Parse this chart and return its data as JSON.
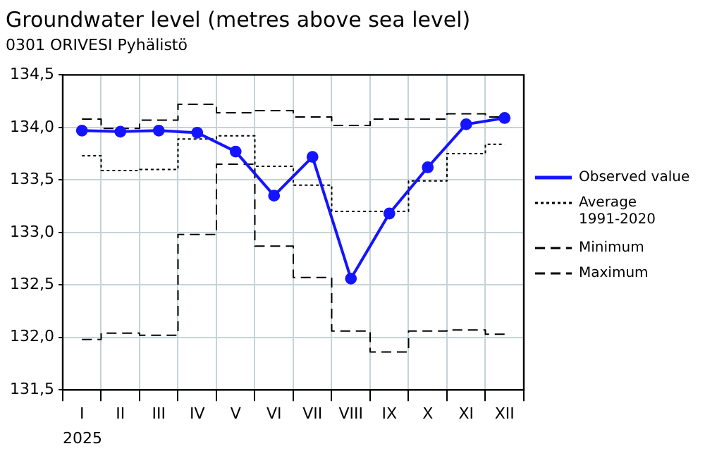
{
  "chart_data": {
    "type": "line",
    "title": "Groundwater level (metres above sea level)",
    "subtitle": "0301 ORIVESI Pyhälistö",
    "xlabel": "2025",
    "categories": [
      "I",
      "II",
      "III",
      "IV",
      "V",
      "VI",
      "VII",
      "VIII",
      "IX",
      "X",
      "XI",
      "XII"
    ],
    "ylim": [
      131.5,
      134.5
    ],
    "yticks": [
      {
        "value": 131.5,
        "label": "131,5"
      },
      {
        "value": 132,
        "label": "132,0"
      },
      {
        "value": 132.5,
        "label": "132,5"
      },
      {
        "value": 133,
        "label": "133,0"
      },
      {
        "value": 133.5,
        "label": "133,5"
      },
      {
        "value": 134,
        "label": "134,0"
      },
      {
        "value": 134.5,
        "label": "134,5"
      }
    ],
    "grid": true,
    "legend": "right",
    "series": [
      {
        "name": "Observed value",
        "color": "#1414ff",
        "marker": "circle",
        "line_style": "solid",
        "values": [
          133.97,
          133.96,
          133.97,
          133.95,
          133.77,
          133.35,
          133.72,
          132.56,
          133.18,
          133.62,
          134.03,
          134.09
        ]
      },
      {
        "name": "Average 1991-2020",
        "type": "step",
        "color": "#000000",
        "marker": "none",
        "line_style": "dotted",
        "values": [
          133.73,
          133.59,
          133.6,
          133.89,
          133.92,
          133.63,
          133.45,
          133.2,
          133.2,
          133.49,
          133.75,
          133.84
        ]
      },
      {
        "name": "Minimum",
        "type": "step",
        "color": "#000000",
        "marker": "none",
        "line_style": "dashed",
        "values": [
          131.98,
          132.04,
          132.02,
          132.98,
          133.65,
          132.87,
          132.57,
          132.06,
          131.86,
          132.06,
          132.07,
          132.03
        ]
      },
      {
        "name": "Maximum",
        "type": "step",
        "color": "#000000",
        "marker": "none",
        "line_style": "dashed",
        "values": [
          134.08,
          133.99,
          134.07,
          134.22,
          134.14,
          134.16,
          134.1,
          134.02,
          134.08,
          134.08,
          134.13,
          134.1
        ]
      }
    ]
  }
}
